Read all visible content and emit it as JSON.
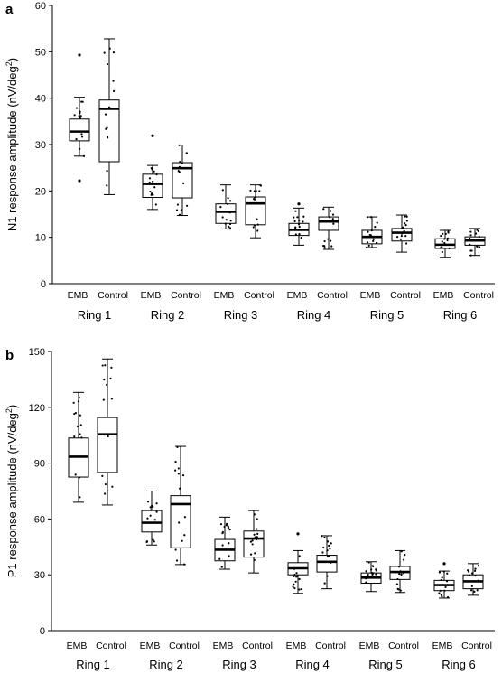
{
  "chart_data": [
    {
      "panel": "a",
      "type": "box",
      "ylabel": "N1 response amplitude (nV/deg²)",
      "ylim": [
        0,
        60
      ],
      "yticks": [
        0,
        10,
        20,
        30,
        40,
        50,
        60
      ],
      "rings": [
        "Ring 1",
        "Ring 2",
        "Ring 3",
        "Ring 4",
        "Ring 5",
        "Ring 6"
      ],
      "groups": [
        "EMB",
        "Control"
      ],
      "boxes": [
        {
          "ring": "Ring 1",
          "group": "EMB",
          "min": 27.5,
          "q1": 30.8,
          "median": 32.8,
          "q3": 35.5,
          "max": 40.2,
          "outliers": [
            49.3,
            22.2
          ]
        },
        {
          "ring": "Ring 1",
          "group": "Control",
          "min": 19.2,
          "q1": 26.3,
          "median": 37.7,
          "q3": 39.6,
          "max": 52.8,
          "outliers": []
        },
        {
          "ring": "Ring 2",
          "group": "EMB",
          "min": 16.0,
          "q1": 18.6,
          "median": 21.5,
          "q3": 23.6,
          "max": 25.5,
          "outliers": [
            31.9
          ]
        },
        {
          "ring": "Ring 2",
          "group": "Control",
          "min": 14.7,
          "q1": 18.5,
          "median": 24.9,
          "q3": 26.1,
          "max": 29.9,
          "outliers": []
        },
        {
          "ring": "Ring 3",
          "group": "EMB",
          "min": 11.8,
          "q1": 13.0,
          "median": 15.5,
          "q3": 17.2,
          "max": 21.3,
          "outliers": []
        },
        {
          "ring": "Ring 3",
          "group": "Control",
          "min": 9.9,
          "q1": 12.7,
          "median": 17.3,
          "q3": 18.7,
          "max": 21.3,
          "outliers": []
        },
        {
          "ring": "Ring 4",
          "group": "EMB",
          "min": 8.3,
          "q1": 10.4,
          "median": 11.6,
          "q3": 13.0,
          "max": 16.3,
          "outliers": [
            17.2
          ]
        },
        {
          "ring": "Ring 4",
          "group": "Control",
          "min": 7.4,
          "q1": 11.5,
          "median": 13.4,
          "q3": 14.4,
          "max": 16.5,
          "outliers": []
        },
        {
          "ring": "Ring 5",
          "group": "EMB",
          "min": 7.8,
          "q1": 8.6,
          "median": 10.1,
          "q3": 11.5,
          "max": 14.4,
          "outliers": []
        },
        {
          "ring": "Ring 5",
          "group": "Control",
          "min": 6.8,
          "q1": 9.2,
          "median": 11.0,
          "q3": 11.9,
          "max": 14.8,
          "outliers": []
        },
        {
          "ring": "Ring 6",
          "group": "EMB",
          "min": 5.6,
          "q1": 7.6,
          "median": 8.4,
          "q3": 9.7,
          "max": 11.5,
          "outliers": []
        },
        {
          "ring": "Ring 6",
          "group": "Control",
          "min": 6.1,
          "q1": 8.3,
          "median": 9.3,
          "q3": 10.1,
          "max": 11.9,
          "outliers": []
        }
      ]
    },
    {
      "panel": "b",
      "type": "box",
      "ylabel": "P1 response amplitude (nV/deg²)",
      "ylim": [
        0,
        150
      ],
      "yticks": [
        0,
        30,
        60,
        90,
        120,
        150
      ],
      "rings": [
        "Ring 1",
        "Ring 2",
        "Ring 3",
        "Ring 4",
        "Ring 5",
        "Ring 6"
      ],
      "groups": [
        "EMB",
        "Control"
      ],
      "boxes": [
        {
          "ring": "Ring 1",
          "group": "EMB",
          "min": 69.0,
          "q1": 82.5,
          "median": 93.5,
          "q3": 103.5,
          "max": 128.0,
          "outliers": []
        },
        {
          "ring": "Ring 1",
          "group": "Control",
          "min": 67.5,
          "q1": 85.0,
          "median": 105.5,
          "q3": 114.5,
          "max": 146.0,
          "outliers": []
        },
        {
          "ring": "Ring 2",
          "group": "EMB",
          "min": 46.0,
          "q1": 53.0,
          "median": 58.0,
          "q3": 64.5,
          "max": 75.0,
          "outliers": []
        },
        {
          "ring": "Ring 2",
          "group": "Control",
          "min": 35.5,
          "q1": 44.5,
          "median": 68.0,
          "q3": 72.5,
          "max": 99.0,
          "outliers": []
        },
        {
          "ring": "Ring 3",
          "group": "EMB",
          "min": 33.0,
          "q1": 37.5,
          "median": 43.5,
          "q3": 49.0,
          "max": 61.0,
          "outliers": []
        },
        {
          "ring": "Ring 3",
          "group": "Control",
          "min": 31.0,
          "q1": 39.5,
          "median": 49.5,
          "q3": 53.5,
          "max": 64.5,
          "outliers": []
        },
        {
          "ring": "Ring 4",
          "group": "EMB",
          "min": 20.0,
          "q1": 30.0,
          "median": 33.5,
          "q3": 36.5,
          "max": 43.0,
          "outliers": [
            52.0
          ]
        },
        {
          "ring": "Ring 4",
          "group": "Control",
          "min": 22.5,
          "q1": 31.5,
          "median": 37.0,
          "q3": 40.5,
          "max": 51.0,
          "outliers": []
        },
        {
          "ring": "Ring 5",
          "group": "EMB",
          "min": 21.0,
          "q1": 25.5,
          "median": 28.5,
          "q3": 31.0,
          "max": 37.0,
          "outliers": []
        },
        {
          "ring": "Ring 5",
          "group": "Control",
          "min": 20.5,
          "q1": 27.5,
          "median": 31.5,
          "q3": 34.5,
          "max": 43.0,
          "outliers": []
        },
        {
          "ring": "Ring 6",
          "group": "EMB",
          "min": 17.5,
          "q1": 21.5,
          "median": 24.5,
          "q3": 27.0,
          "max": 32.0,
          "outliers": [
            36.0
          ]
        },
        {
          "ring": "Ring 6",
          "group": "Control",
          "min": 19.0,
          "q1": 22.5,
          "median": 26.5,
          "q3": 30.0,
          "max": 36.0,
          "outliers": []
        }
      ]
    }
  ]
}
